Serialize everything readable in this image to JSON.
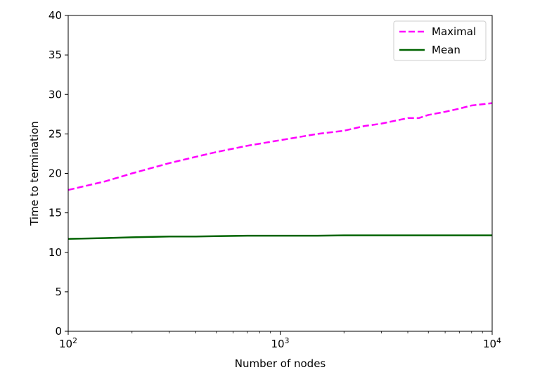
{
  "chart_data": {
    "type": "line",
    "title": "",
    "xlabel": "Number of nodes",
    "ylabel": "Time to termination",
    "xscale": "log",
    "xlim": [
      100,
      10000
    ],
    "ylim": [
      0,
      40
    ],
    "x_ticks": [
      {
        "value": 100,
        "base": "10",
        "exp": "2"
      },
      {
        "value": 1000,
        "base": "10",
        "exp": "3"
      },
      {
        "value": 10000,
        "base": "10",
        "exp": "4"
      }
    ],
    "y_ticks": [
      {
        "value": 0,
        "label": "0"
      },
      {
        "value": 5,
        "label": "5"
      },
      {
        "value": 10,
        "label": "10"
      },
      {
        "value": 15,
        "label": "15"
      },
      {
        "value": 20,
        "label": "20"
      },
      {
        "value": 25,
        "label": "25"
      },
      {
        "value": 30,
        "label": "30"
      },
      {
        "value": 35,
        "label": "35"
      },
      {
        "value": 40,
        "label": "40"
      }
    ],
    "grid": false,
    "legend": {
      "position": "top-right"
    },
    "series": [
      {
        "name": "Maximal",
        "color": "#ff00ff",
        "style": "dashed",
        "x": [
          100,
          150,
          200,
          300,
          400,
          500,
          700,
          1000,
          1500,
          2000,
          2500,
          3000,
          4000,
          4500,
          5000,
          6000,
          7000,
          8000,
          10000
        ],
        "y": [
          17.9,
          19.0,
          20.0,
          21.3,
          22.1,
          22.7,
          23.5,
          24.2,
          25.0,
          25.4,
          26.0,
          26.3,
          27.0,
          27.0,
          27.4,
          27.8,
          28.2,
          28.6,
          28.9
        ]
      },
      {
        "name": "Mean",
        "color": "#006400",
        "style": "solid",
        "x": [
          100,
          150,
          200,
          300,
          400,
          500,
          700,
          1000,
          1500,
          2000,
          3000,
          5000,
          7000,
          10000
        ],
        "y": [
          11.7,
          11.8,
          11.9,
          12.0,
          12.0,
          12.05,
          12.1,
          12.1,
          12.1,
          12.15,
          12.15,
          12.15,
          12.15,
          12.15
        ]
      }
    ]
  }
}
